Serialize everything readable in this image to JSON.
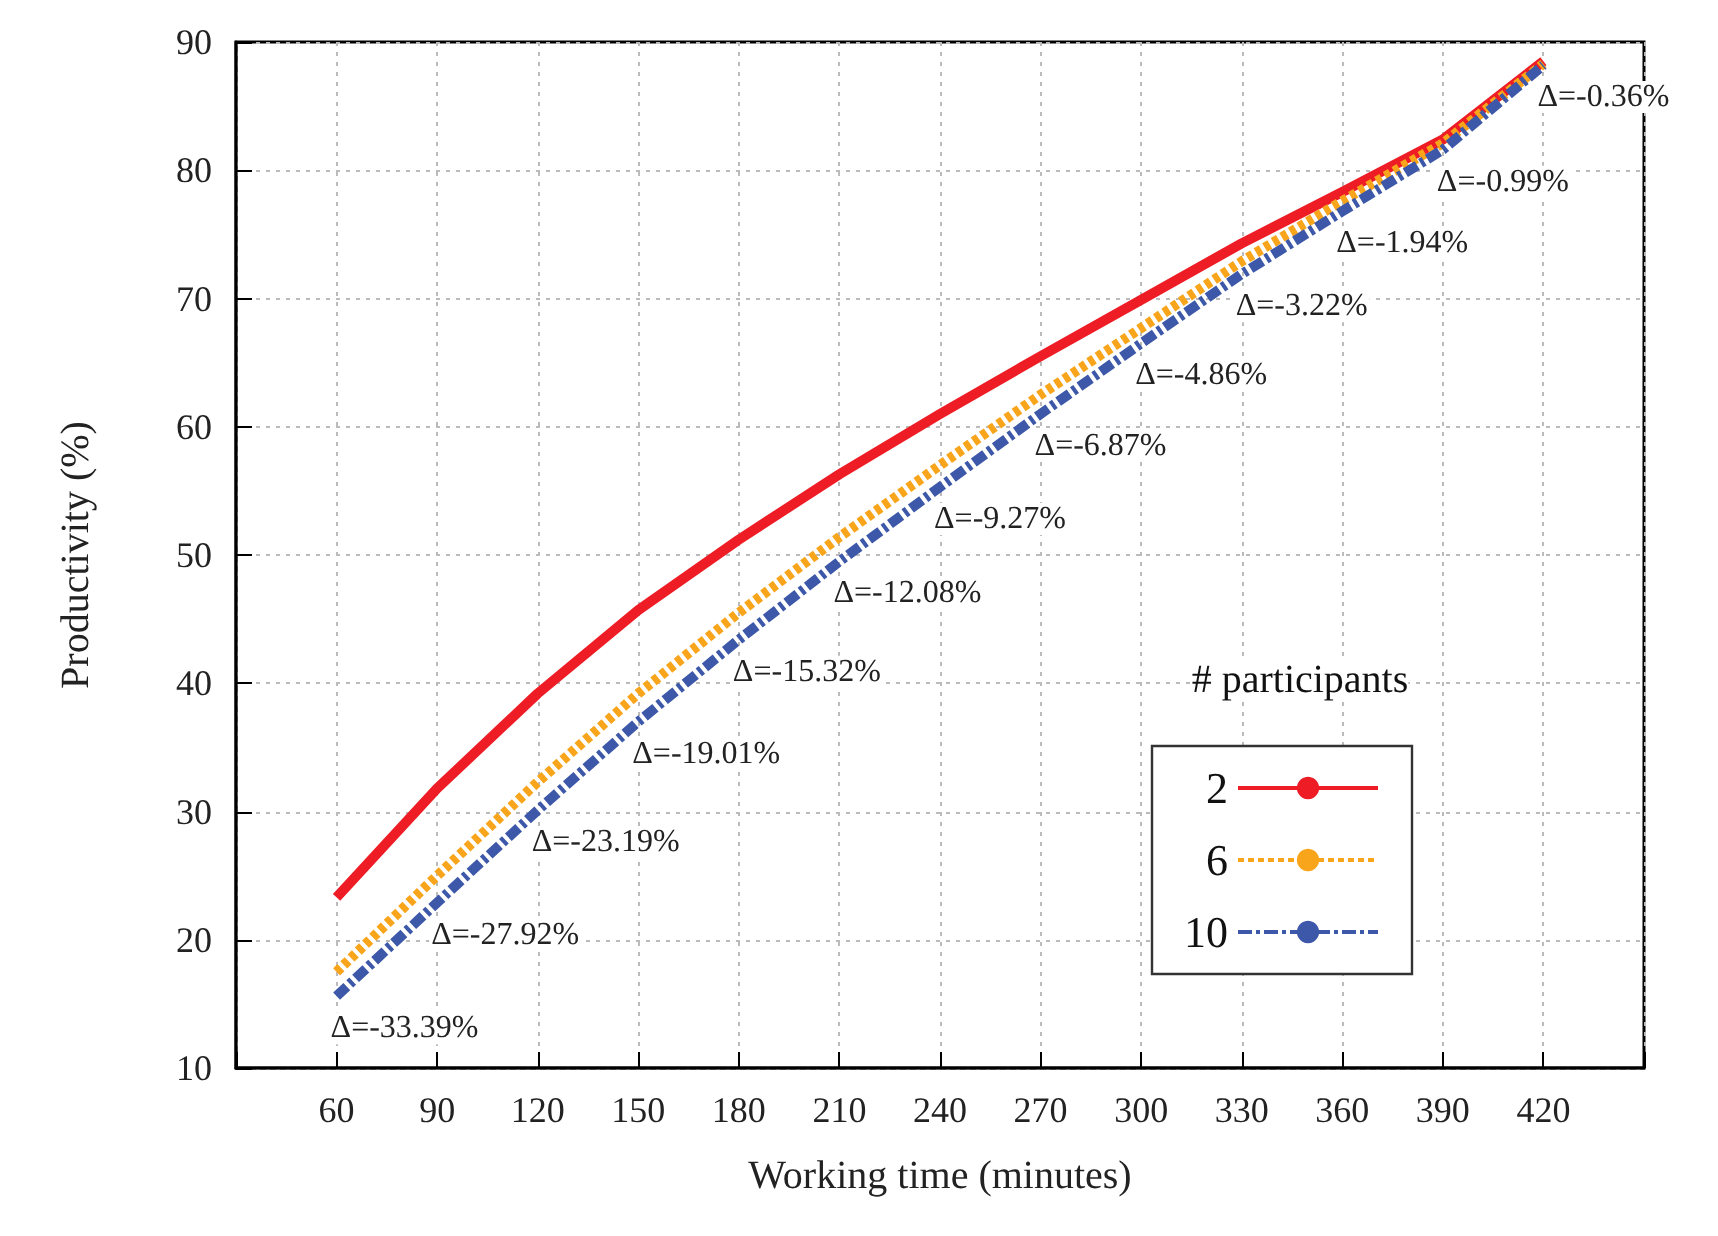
{
  "chart_data": {
    "type": "line",
    "xlabel": "Working time (minutes)",
    "ylabel": "Productivity (%)",
    "legend_title": "# participants",
    "x": [
      60,
      90,
      120,
      150,
      180,
      210,
      240,
      270,
      300,
      330,
      360,
      390,
      420
    ],
    "series": [
      {
        "name": "2",
        "color": "#ee1c25",
        "line_style": "solid",
        "values": [
          23.3,
          31.8,
          39.2,
          45.7,
          51.2,
          56.3,
          61.0,
          65.5,
          69.9,
          74.3,
          78.3,
          82.4,
          88.5
        ]
      },
      {
        "name": "6",
        "color": "#f8a51b",
        "line_style": "dotted",
        "values": [
          17.5,
          25.0,
          32.3,
          39.2,
          45.5,
          51.4,
          57.0,
          62.5,
          67.7,
          72.9,
          77.6,
          82.1,
          88.3
        ]
      },
      {
        "name": "10",
        "color": "#3d58a8",
        "line_style": "dashed",
        "values": [
          15.6,
          22.9,
          30.1,
          37.0,
          43.4,
          49.5,
          55.3,
          61.0,
          66.5,
          71.9,
          76.8,
          81.6,
          88.2
        ]
      }
    ],
    "annotations": [
      {
        "text": "Δ=-33.39%",
        "x": 60,
        "y": 15.6
      },
      {
        "text": "Δ=-27.92%",
        "x": 90,
        "y": 22.9
      },
      {
        "text": "Δ=-23.19%",
        "x": 120,
        "y": 30.1
      },
      {
        "text": "Δ=-19.01%",
        "x": 150,
        "y": 37.0
      },
      {
        "text": "Δ=-15.32%",
        "x": 180,
        "y": 43.4
      },
      {
        "text": "Δ=-12.08%",
        "x": 210,
        "y": 49.5
      },
      {
        "text": "Δ=-9.27%",
        "x": 240,
        "y": 55.3
      },
      {
        "text": "Δ=-6.87%",
        "x": 270,
        "y": 61.0
      },
      {
        "text": "Δ=-4.86%",
        "x": 300,
        "y": 66.5
      },
      {
        "text": "Δ=-3.22%",
        "x": 330,
        "y": 71.9
      },
      {
        "text": "Δ=-1.94%",
        "x": 360,
        "y": 76.8
      },
      {
        "text": "Δ=-0.99%",
        "x": 390,
        "y": 81.6
      },
      {
        "text": "Δ=-0.36%",
        "x": 420,
        "y": 88.2
      }
    ],
    "xlim": [
      30,
      450
    ],
    "xticks": [
      {
        "value": 30,
        "label": null
      },
      60,
      90,
      120,
      150,
      180,
      210,
      240,
      270,
      300,
      330,
      360,
      390,
      420,
      {
        "value": 450,
        "label": null
      }
    ],
    "ylim": [
      10,
      90
    ],
    "yticks": [
      10,
      20,
      30,
      40,
      50,
      60,
      70,
      80,
      90
    ],
    "grid": true,
    "legend": "bottom right",
    "marker": "none"
  }
}
